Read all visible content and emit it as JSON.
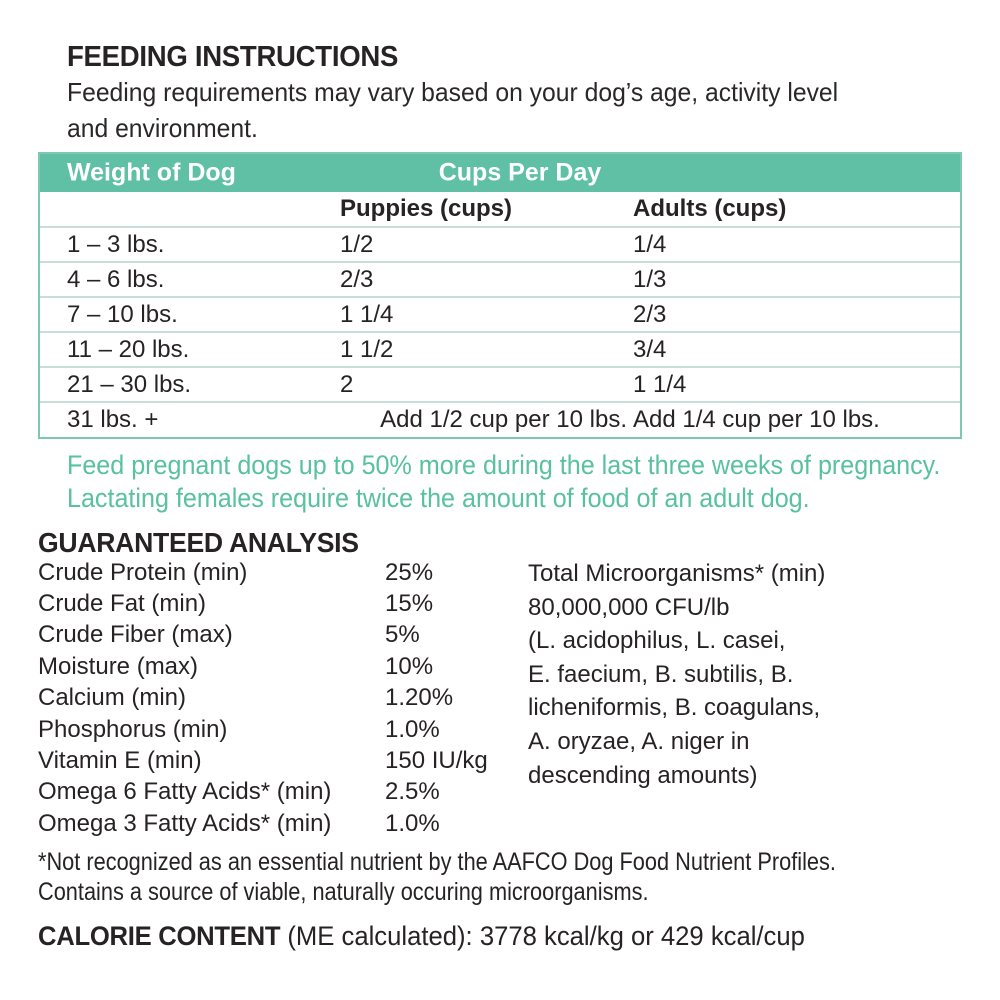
{
  "colors": {
    "teal_header_bg": "#5fc0a6",
    "table_border": "#7cc8b2",
    "row_divider": "#c7dfd8",
    "teal_text": "#58c19e",
    "ink": "#272325"
  },
  "feeding": {
    "heading": "FEEDING INSTRUCTIONS",
    "body_lines": [
      "Feeding requirements may vary based on your dog’s age, activity level",
      "and environment."
    ]
  },
  "table": {
    "header": {
      "weight": "Weight of Dog",
      "cups": "Cups Per Day"
    },
    "subheader": {
      "puppies": "Puppies (cups)",
      "adults": "Adults (cups)"
    },
    "rows": [
      {
        "weight": "1 – 3 lbs.",
        "puppies": "1/2",
        "adults": "1/4"
      },
      {
        "weight": "4 – 6 lbs.",
        "puppies": "2/3",
        "adults": "1/3"
      },
      {
        "weight": "7 – 10 lbs.",
        "puppies": "1 1/4",
        "adults": "2/3"
      },
      {
        "weight": "11 – 20 lbs.",
        "puppies": "1 1/2",
        "adults": "3/4"
      },
      {
        "weight": "21 – 30 lbs.",
        "puppies": "2",
        "adults": "1 1/4"
      },
      {
        "weight": "31 lbs. +",
        "puppies": "Add 1/2 cup per 10 lbs.",
        "adults": "Add 1/4 cup per 10 lbs."
      }
    ]
  },
  "pregnancy_note": {
    "lines": [
      "Feed pregnant dogs up to 50% more during the last three weeks of pregnancy.",
      "Lactating females require twice the amount of food of an adult dog."
    ]
  },
  "analysis": {
    "heading": "GUARANTEED ANALYSIS",
    "items": [
      {
        "label": "Crude Protein (min)",
        "value": "25%"
      },
      {
        "label": "Crude Fat (min)",
        "value": "15%"
      },
      {
        "label": "Crude Fiber (max)",
        "value": "5%"
      },
      {
        "label": "Moisture (max)",
        "value": "10%"
      },
      {
        "label": "Calcium (min)",
        "value": "1.20%"
      },
      {
        "label": "Phosphorus (min)",
        "value": "1.0%"
      },
      {
        "label": "Vitamin E (min)",
        "value": "150 IU/kg"
      },
      {
        "label": "Omega 6 Fatty Acids* (min)",
        "value": "2.5%"
      },
      {
        "label": "Omega 3 Fatty Acids* (min)",
        "value": "1.0%"
      }
    ],
    "microorganisms_lines": [
      "Total Microorganisms* (min)",
      "80,000,000 CFU/lb",
      "(L. acidophilus, L. casei,",
      "E. faecium, B. subtilis, B.",
      "licheniformis, B. coagulans,",
      "A. oryzae, A. niger in",
      "descending amounts)"
    ]
  },
  "footnote_lines": [
    "*Not recognized as an essential nutrient by the AAFCO Dog Food Nutrient Profiles.",
    "Contains a source of viable, naturally occuring microorganisms."
  ],
  "calorie": {
    "heading": "CALORIE CONTENT",
    "text": " (ME calculated): 3778 kcal/kg or 429 kcal/cup"
  }
}
